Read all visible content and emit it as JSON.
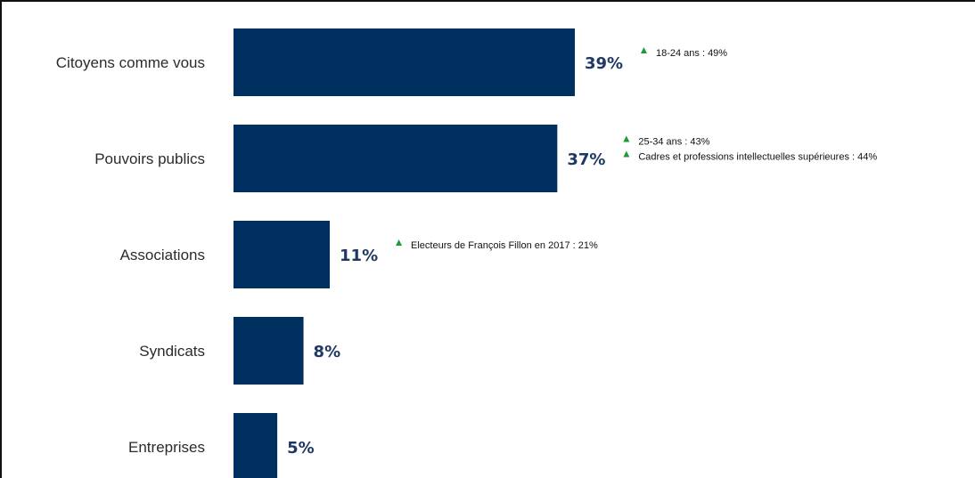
{
  "chart_data": {
    "type": "bar",
    "orientation": "horizontal",
    "categories": [
      "Citoyens comme vous",
      "Pouvoirs publics",
      "Associations",
      "Syndicats",
      "Entreprises"
    ],
    "values": [
      39,
      37,
      11,
      8,
      5
    ],
    "value_labels": [
      "39%",
      "37%",
      "11%",
      "8%",
      "5%"
    ],
    "unit": "%",
    "xlim": [
      0,
      39
    ],
    "grid": false,
    "bar_color": "#00305f",
    "value_label_color": "#1f3864",
    "annotations": [
      [
        "18-24 ans : 49%"
      ],
      [
        "25-34 ans : 43%",
        "Cadres et professions intellectuelles supérieures : 44%"
      ],
      [
        "Electeurs de François Fillon en 2017 : 21%"
      ],
      [],
      []
    ],
    "annotation_marker": "▲",
    "annotation_marker_color": "#1e9a3a"
  }
}
